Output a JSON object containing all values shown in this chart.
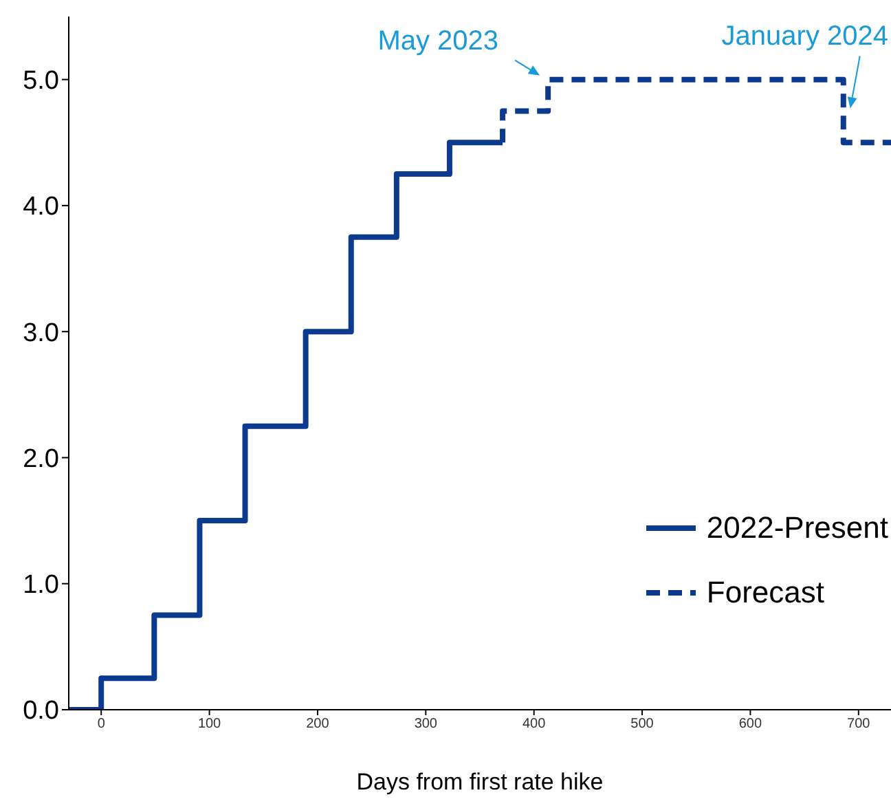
{
  "chart_data": {
    "type": "step",
    "xlabel": "Days from first rate hike",
    "xlim": [
      -30,
      730
    ],
    "xticks": [
      0,
      100,
      200,
      300,
      400,
      500,
      600,
      700
    ],
    "ylim": [
      0,
      5.5
    ],
    "yticks": [
      {
        "value": 0,
        "label": "0.0"
      },
      {
        "value": 1,
        "label": "1.0"
      },
      {
        "value": 2,
        "label": "2.0"
      },
      {
        "value": 3,
        "label": "3.0"
      },
      {
        "value": 4,
        "label": "4.0"
      },
      {
        "value": 5,
        "label": "5.0"
      }
    ],
    "series": [
      {
        "name": "2022-Present",
        "color": "#0b3a8f",
        "line_style": "solid",
        "x": [
          -30,
          0,
          49,
          91,
          133,
          189,
          231,
          273,
          322,
          371
        ],
        "values": [
          0,
          0.25,
          0.75,
          1.5,
          2.25,
          3.0,
          3.75,
          4.25,
          4.5,
          4.5
        ]
      },
      {
        "name": "Forecast",
        "color": "#0b3a8f",
        "line_style": "dashed",
        "x": [
          371,
          371,
          413,
          686,
          730
        ],
        "values": [
          4.5,
          4.75,
          5.0,
          4.5,
          4.5
        ]
      }
    ],
    "annotations": [
      {
        "text": "May 2023",
        "x": 413,
        "y": 5.0
      },
      {
        "text": "January 2024",
        "x": 686,
        "y": 4.75
      }
    ],
    "grid": false,
    "legend": "bottom right",
    "marker": "none"
  }
}
